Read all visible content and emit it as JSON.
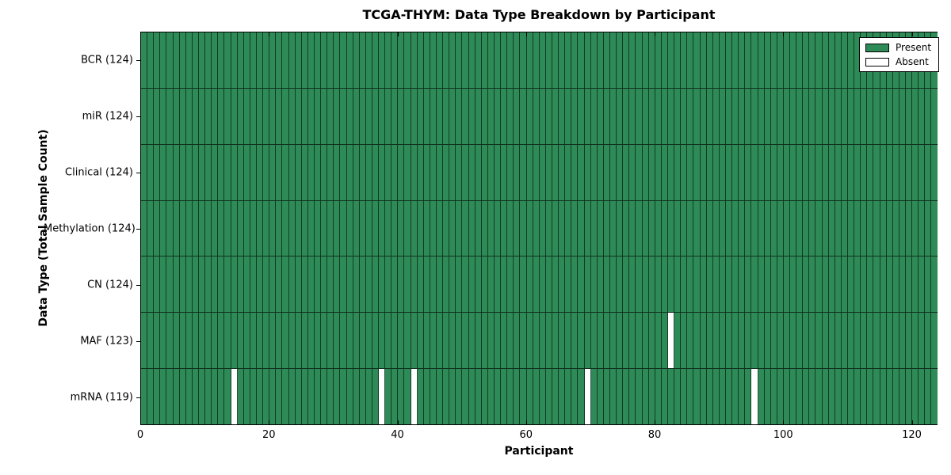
{
  "title": "TCGA-THYM: Data Type Breakdown by Participant",
  "chart_data": {
    "type": "heatmap",
    "title": "TCGA-THYM: Data Type Breakdown by Participant",
    "xlabel": "Participant",
    "ylabel": "Data Type (Total Sample Count)",
    "xlim": [
      0,
      124
    ],
    "n_participants": 124,
    "x_ticks": [
      0,
      20,
      40,
      60,
      80,
      100,
      120
    ],
    "grid": false,
    "legend_position": "upper right",
    "rows": [
      {
        "name": "BCR",
        "label": "BCR (124)",
        "total": 124,
        "absent_participants": []
      },
      {
        "name": "miR",
        "label": "miR (124)",
        "total": 124,
        "absent_participants": []
      },
      {
        "name": "Clinical",
        "label": "Clinical (124)",
        "total": 124,
        "absent_participants": []
      },
      {
        "name": "Methylation",
        "label": "Methylation (124)",
        "total": 124,
        "absent_participants": []
      },
      {
        "name": "CN",
        "label": "CN (124)",
        "total": 124,
        "absent_participants": []
      },
      {
        "name": "MAF",
        "label": "MAF (123)",
        "total": 123,
        "absent_participants": [
          82
        ]
      },
      {
        "name": "mRNA",
        "label": "mRNA (119)",
        "total": 119,
        "absent_participants": [
          14,
          37,
          42,
          69,
          95
        ]
      }
    ],
    "legend": [
      {
        "label": "Present",
        "color": "#2e8b57"
      },
      {
        "label": "Absent",
        "color": "#ffffff"
      }
    ],
    "colors": {
      "present": "#2e8b57",
      "absent": "#ffffff",
      "cell_edge": "rgba(10,45,28,0.85)",
      "row_edge": "rgba(0,0,0,0.65)",
      "spine": "#000000",
      "background": "#ffffff"
    }
  }
}
